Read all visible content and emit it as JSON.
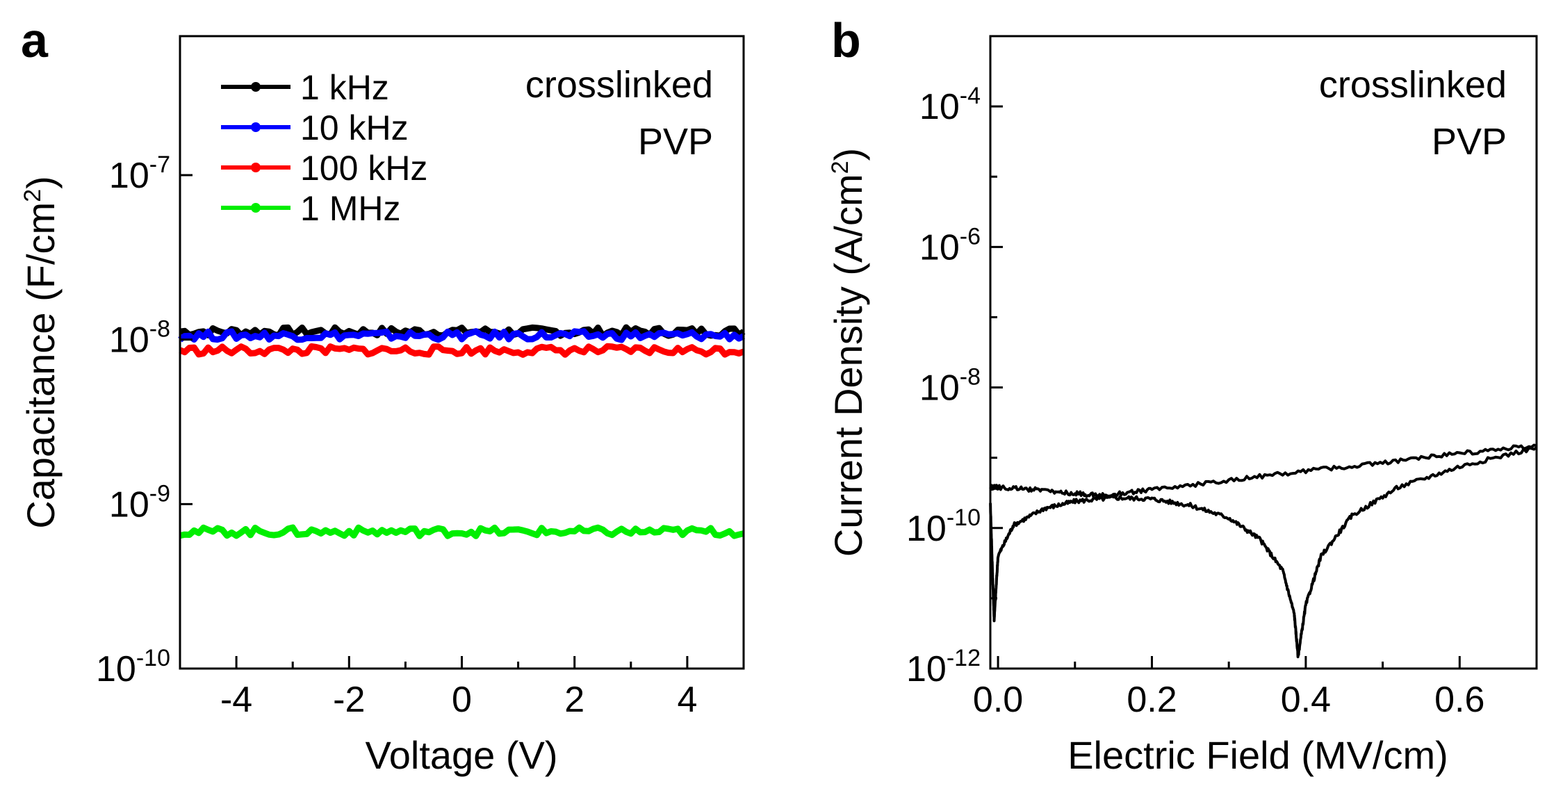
{
  "chart_data": [
    {
      "panel_label": "a",
      "type": "line",
      "xlabel": "Voltage (V)",
      "ylabel_prefix": "Capacitance (F/cm",
      "ylabel_sup": "2",
      "ylabel_suffix": ")",
      "annotation": [
        "crosslinked",
        "PVP"
      ],
      "xlim": [
        -5,
        5
      ],
      "ylim": [
        1e-10,
        7e-07
      ],
      "yscale": "log",
      "x_ticks": [
        "-4",
        "-2",
        "0",
        "2",
        "4"
      ],
      "x_tick_values": [
        -4,
        -2,
        0,
        2,
        4
      ],
      "y_ticks": [
        {
          "value": 1e-07,
          "base": "10",
          "exp": "-7"
        },
        {
          "value": 1e-08,
          "base": "10",
          "exp": "-8"
        },
        {
          "value": 1e-09,
          "base": "10",
          "exp": "-9"
        },
        {
          "value": 1e-10,
          "base": "10",
          "exp": "-10"
        }
      ],
      "grid": false,
      "legend_position": "top-left",
      "series": [
        {
          "name": "1 kHz",
          "color": "#000000",
          "x": [
            -5,
            5
          ],
          "y": [
            1.12e-08,
            1.12e-08
          ]
        },
        {
          "name": "10 kHz",
          "color": "#0000ff",
          "x": [
            -5,
            5
          ],
          "y": [
            1.06e-08,
            1.06e-08
          ]
        },
        {
          "name": "100 kHz",
          "color": "#ff0000",
          "x": [
            -5,
            5
          ],
          "y": [
            8.6e-09,
            8.6e-09
          ]
        },
        {
          "name": "1 MHz",
          "color": "#00ee00",
          "x": [
            -5,
            5
          ],
          "y": [
            6.8e-10,
            6.8e-10
          ]
        }
      ]
    },
    {
      "panel_label": "b",
      "type": "line",
      "xlabel": "Electric Field (MV/cm)",
      "ylabel_prefix": "Current Density (A/cm",
      "ylabel_sup": "2",
      "ylabel_suffix": ")",
      "annotation": [
        "crosslinked",
        "PVP"
      ],
      "xlim": [
        -0.01,
        0.7
      ],
      "ylim": [
        1e-12,
        0.001
      ],
      "yscale": "log",
      "x_ticks": [
        "0.0",
        "0.2",
        "0.4",
        "0.6"
      ],
      "x_tick_values": [
        0.0,
        0.2,
        0.4,
        0.6
      ],
      "y_ticks": [
        {
          "value": 0.0001,
          "base": "10",
          "exp": "-4"
        },
        {
          "value": 1e-06,
          "base": "10",
          "exp": "-6"
        },
        {
          "value": 1e-08,
          "base": "10",
          "exp": "-8"
        },
        {
          "value": 1e-10,
          "base": "10",
          "exp": "-10"
        },
        {
          "value": 1e-12,
          "base": "10",
          "exp": "-12"
        }
      ],
      "grid": false,
      "series": [
        {
          "color": "#000000",
          "x": [
            0.7,
            0.6,
            0.5,
            0.4,
            0.3,
            0.2,
            0.14,
            0.1,
            0.05,
            0.0,
            -0.01
          ],
          "y": [
            1.5e-09,
            1.15e-09,
            8.5e-10,
            6.5e-10,
            4.8e-10,
            3.5e-10,
            2.9e-10,
            3.1e-10,
            3.5e-10,
            3.8e-10,
            3.8e-10
          ]
        },
        {
          "color": "#000000",
          "x": [
            -0.01,
            -0.007,
            -0.005,
            0.0,
            0.02,
            0.06,
            0.1,
            0.15,
            0.2,
            0.25,
            0.3,
            0.34,
            0.37,
            0.385,
            0.39,
            0.4,
            0.42,
            0.46,
            0.52,
            0.6,
            0.7
          ],
          "y": [
            2.3e-10,
            2e-11,
            5e-12,
            4e-11,
            1.1e-10,
            1.9e-10,
            2.4e-10,
            2.7e-10,
            2.6e-10,
            2.1e-10,
            1.4e-10,
            7e-11,
            2.5e-11,
            6e-12,
            1.5e-12,
            8e-12,
            4e-11,
            1.5e-10,
            3.8e-10,
            7.5e-10,
            1.4e-09
          ]
        }
      ]
    }
  ]
}
